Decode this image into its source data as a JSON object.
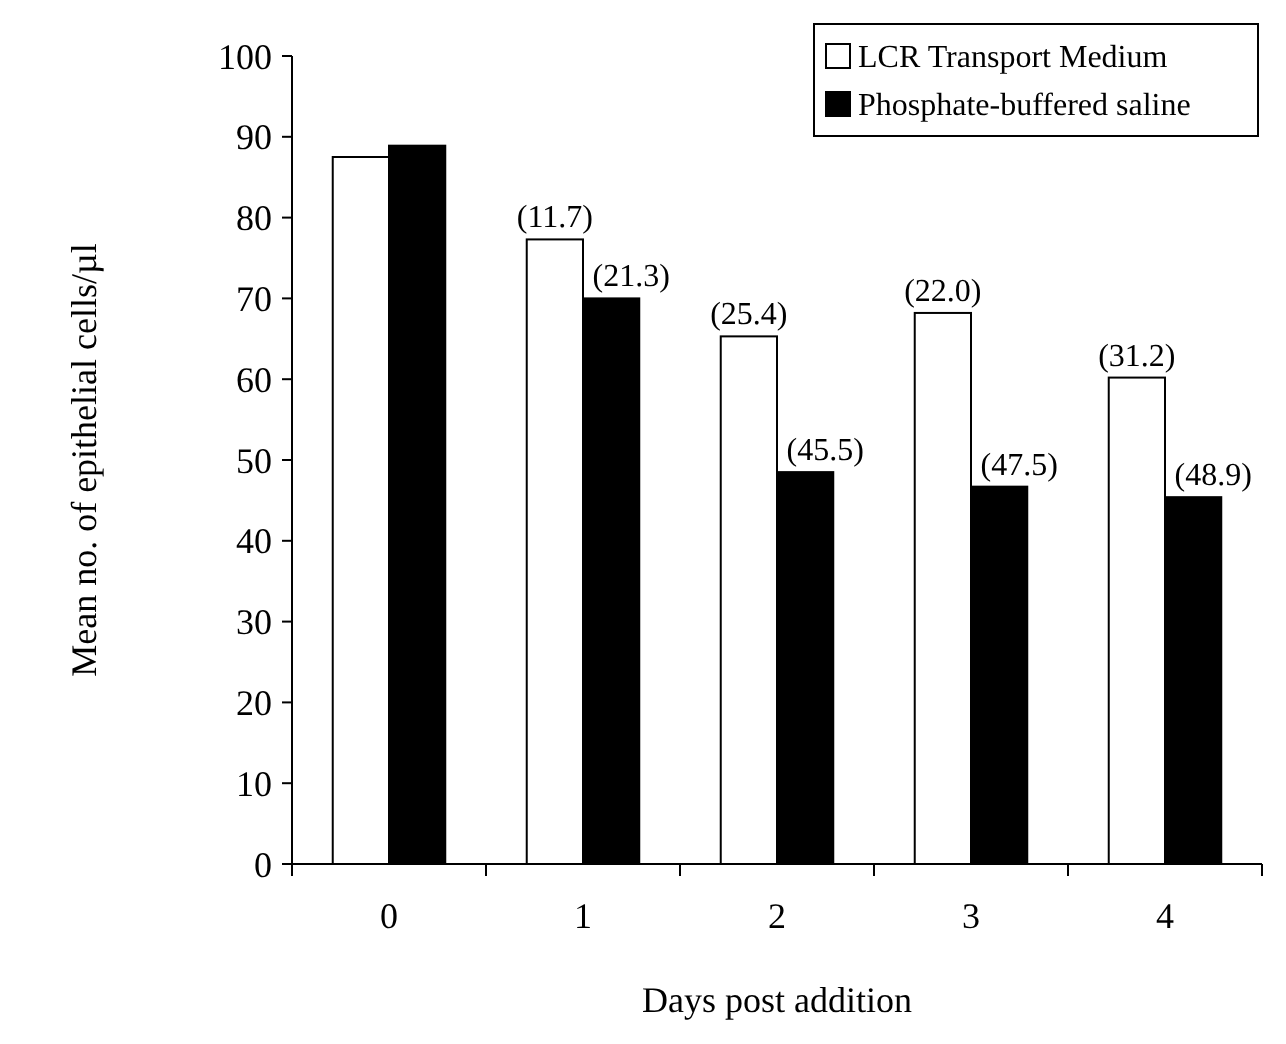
{
  "chart_data": {
    "type": "bar",
    "xlabel": "Days post addition",
    "ylabel": "Mean no. of epithelial cells/µl",
    "categories": [
      "0",
      "1",
      "2",
      "3",
      "4"
    ],
    "series": [
      {
        "name": "LCR Transport Medium",
        "color": "#ffffff",
        "values": [
          87.5,
          77.3,
          65.3,
          68.2,
          60.2
        ]
      },
      {
        "name": "Phosphate-buffered saline",
        "color": "#000000",
        "values": [
          88.9,
          70,
          48.5,
          46.7,
          45.4
        ]
      }
    ],
    "annotations": [
      {
        "text": "(11.7)",
        "x": "1",
        "y": 77.3
      },
      {
        "text": "(25.4)",
        "x": "2",
        "y": 65.3
      },
      {
        "text": "(22.0)",
        "x": "3",
        "y": 68.2
      },
      {
        "text": "(31.2)",
        "x": "4",
        "y": 60.2
      },
      {
        "text": "(21.3)",
        "x": "1",
        "y": 70
      },
      {
        "text": "(45.5)",
        "x": "2",
        "y": 48.5
      },
      {
        "text": "(47.5)",
        "x": "3",
        "y": 46.7
      },
      {
        "text": "(48.9)",
        "x": "4",
        "y": 45.4
      }
    ],
    "ylim": [
      0,
      100
    ],
    "yticks": [
      0,
      10,
      20,
      30,
      40,
      50,
      60,
      70,
      80,
      90,
      100
    ],
    "grid": false,
    "legend": "top right"
  }
}
